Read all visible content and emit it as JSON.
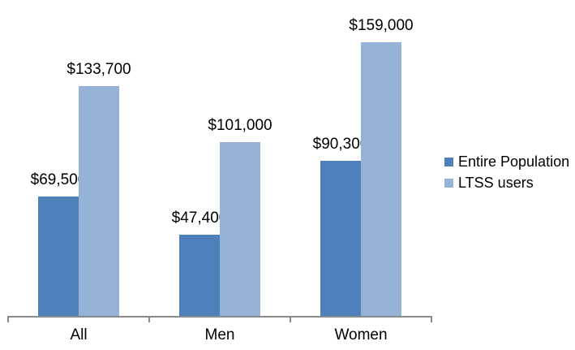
{
  "chart_data": {
    "type": "bar",
    "title": "",
    "xlabel": "",
    "ylabel": "",
    "categories": [
      "All",
      "Men",
      "Women"
    ],
    "series": [
      {
        "name": "Entire Population",
        "color": "#4e80bc",
        "values": [
          69500,
          47400,
          90300
        ],
        "labels": [
          "$69,500",
          "$47,400",
          "$90,300"
        ]
      },
      {
        "name": "LTSS users",
        "color": "#95b3d7",
        "values": [
          133700,
          101000,
          159000
        ],
        "labels": [
          "$133,700",
          "$101,000",
          "$159,000"
        ]
      }
    ],
    "ylim": [
      0,
      180000
    ],
    "grid": false,
    "legend_position": "right",
    "axis_color": "#8a8a8a",
    "label_color": "#000000"
  }
}
